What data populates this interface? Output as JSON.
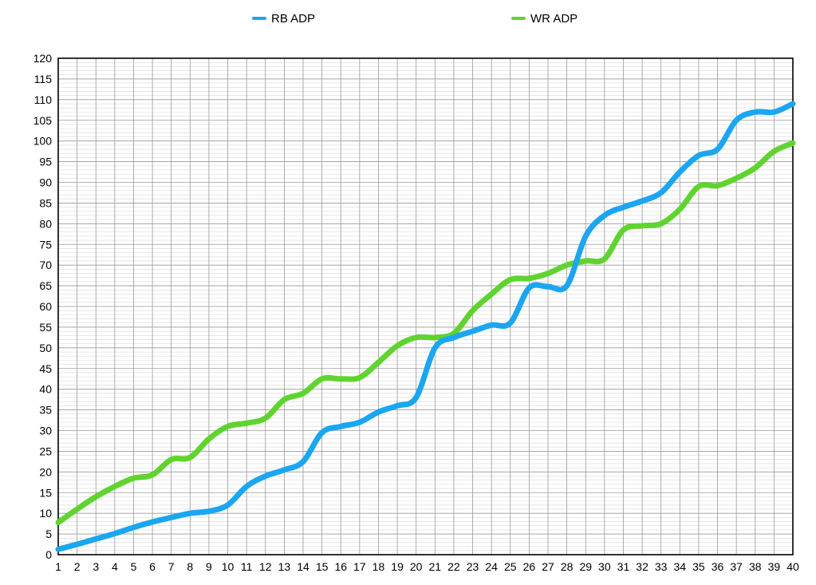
{
  "chart_data": {
    "type": "line",
    "title": "",
    "xlabel": "",
    "ylabel": "",
    "x": [
      1,
      2,
      3,
      4,
      5,
      6,
      7,
      8,
      9,
      10,
      11,
      12,
      13,
      14,
      15,
      16,
      17,
      18,
      19,
      20,
      21,
      22,
      23,
      24,
      25,
      26,
      27,
      28,
      29,
      30,
      31,
      32,
      33,
      34,
      35,
      36,
      37,
      38,
      39,
      40
    ],
    "xlim": [
      1,
      40
    ],
    "ylim": [
      0,
      120
    ],
    "y_ticks": [
      0,
      5,
      10,
      15,
      20,
      25,
      30,
      35,
      40,
      45,
      50,
      55,
      60,
      65,
      70,
      75,
      80,
      85,
      90,
      95,
      100,
      105,
      110,
      115,
      120
    ],
    "grid": true,
    "legend_position": "top-center",
    "series": [
      {
        "name": "RB ADP",
        "color": "#1aa6f0",
        "values": [
          1.3,
          2.5,
          3.8,
          5.1,
          6.6,
          7.9,
          9.0,
          10.0,
          10.5,
          12.0,
          16.5,
          19.0,
          20.5,
          22.5,
          29.5,
          31.0,
          32.0,
          34.5,
          36.0,
          38.0,
          50.0,
          52.5,
          54.0,
          55.5,
          56.0,
          64.5,
          64.8,
          65.0,
          77.0,
          82.0,
          84.0,
          85.5,
          87.5,
          92.5,
          96.5,
          98.0,
          105.0,
          107.0,
          107.0,
          109.0
        ]
      },
      {
        "name": "WR ADP",
        "color": "#5fd42f",
        "values": [
          7.8,
          11.0,
          14.0,
          16.5,
          18.5,
          19.3,
          23.0,
          23.5,
          28.0,
          31.0,
          31.8,
          33.0,
          37.5,
          39.0,
          42.5,
          42.5,
          42.8,
          46.5,
          50.5,
          52.5,
          52.5,
          53.5,
          59.0,
          63.0,
          66.5,
          66.8,
          68.0,
          70.0,
          71.0,
          71.5,
          78.5,
          79.5,
          80.0,
          83.5,
          89.0,
          89.2,
          91.0,
          93.5,
          97.5,
          99.5
        ]
      }
    ]
  }
}
